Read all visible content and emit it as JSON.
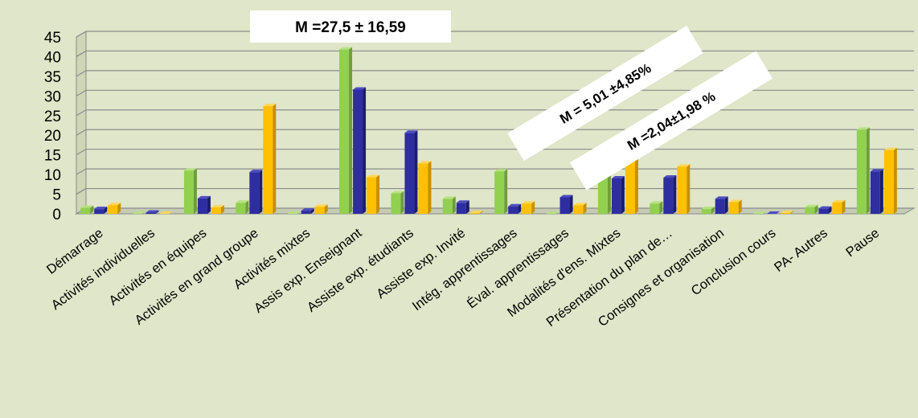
{
  "chart_data": {
    "type": "bar",
    "categories": [
      "Démarrage",
      "Activités individuelles",
      "Activités en équipes",
      "Activités en grand groupe",
      "Activités mixtes",
      "Assis exp. Enseignant",
      "Assiste exp. étudiants",
      "Assiste exp. Invité",
      "Intég. apprentissages",
      "Éval. apprentissages",
      "Modalités d'ens. Mixtes",
      "Présentation du plan de…",
      "Consignes et organisation",
      "Conclusion cours",
      "PA- Autres",
      "Pause"
    ],
    "series": [
      {
        "color": "#92d050",
        "side": "#6e9e3a",
        "top": "#b6e27e",
        "values": [
          1.5,
          0,
          11,
          2.8,
          0,
          41.8,
          5.2,
          3.8,
          10.8,
          0,
          11,
          2.6,
          1.2,
          0,
          1.7,
          21.4
        ]
      },
      {
        "color": "#2e2ea0",
        "side": "#1c1c6e",
        "top": "#4d4dc0",
        "values": [
          1.2,
          0.3,
          3.9,
          10.6,
          0.8,
          31.6,
          20.6,
          2.8,
          1.9,
          4.2,
          9,
          9.2,
          3.8,
          0,
          1.3,
          10.8
        ]
      },
      {
        "color": "#ffc000",
        "side": "#c78f00",
        "top": "#ffd65a",
        "values": [
          2.2,
          0,
          1.6,
          27.4,
          1.8,
          9.3,
          12.8,
          0.2,
          2.6,
          2.2,
          19,
          12,
          3,
          0.2,
          2.9,
          16.2
        ]
      }
    ],
    "ylim": [
      0,
      45
    ],
    "yticks": [
      0,
      5,
      10,
      15,
      20,
      25,
      30,
      35,
      40,
      45
    ],
    "grid": true,
    "legend": "none",
    "annotations": [
      {
        "text": "M =27,5 ± 16,59"
      },
      {
        "text": "M = 5,01 ±4,85%"
      },
      {
        "text": "M =2,04±1,98 %"
      }
    ]
  }
}
